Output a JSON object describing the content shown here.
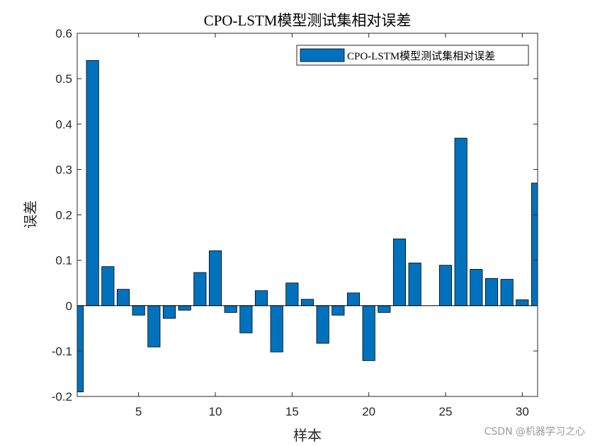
{
  "chart_data": {
    "type": "bar",
    "title": "CPO-LSTM模型测试集相对误差",
    "xlabel": "样本",
    "ylabel": "误差",
    "x": [
      1,
      2,
      3,
      4,
      5,
      6,
      7,
      8,
      9,
      10,
      11,
      12,
      13,
      14,
      15,
      16,
      17,
      18,
      19,
      20,
      21,
      22,
      23,
      24,
      25,
      26,
      27,
      28,
      29,
      30,
      31
    ],
    "values": [
      -0.19,
      0.54,
      0.086,
      0.036,
      -0.021,
      -0.091,
      -0.028,
      -0.01,
      0.073,
      0.121,
      -0.015,
      -0.06,
      0.033,
      -0.102,
      0.05,
      0.014,
      -0.083,
      -0.021,
      0.028,
      -0.121,
      -0.015,
      0.147,
      0.094,
      0.0,
      0.089,
      0.369,
      0.08,
      0.06,
      0.058,
      0.013,
      0.27
    ],
    "xlim": [
      1,
      31
    ],
    "ylim": [
      -0.2,
      0.6
    ],
    "xticks": [
      "5",
      "10",
      "15",
      "20",
      "25",
      "30"
    ],
    "xtick_values": [
      5,
      10,
      15,
      20,
      25,
      30
    ],
    "yticks": [
      "-0.2",
      "-0.1",
      "0",
      "0.1",
      "0.2",
      "0.3",
      "0.4",
      "0.5",
      "0.6"
    ],
    "ytick_values": [
      -0.2,
      -0.1,
      0,
      0.1,
      0.2,
      0.3,
      0.4,
      0.5,
      0.6
    ],
    "series": [
      {
        "name": "CPO-LSTM模型测试集相对误差",
        "color": "#0072BD"
      }
    ],
    "legend_position": "top-right",
    "grid": false
  },
  "watermark": "CSDN @机器学习之心"
}
